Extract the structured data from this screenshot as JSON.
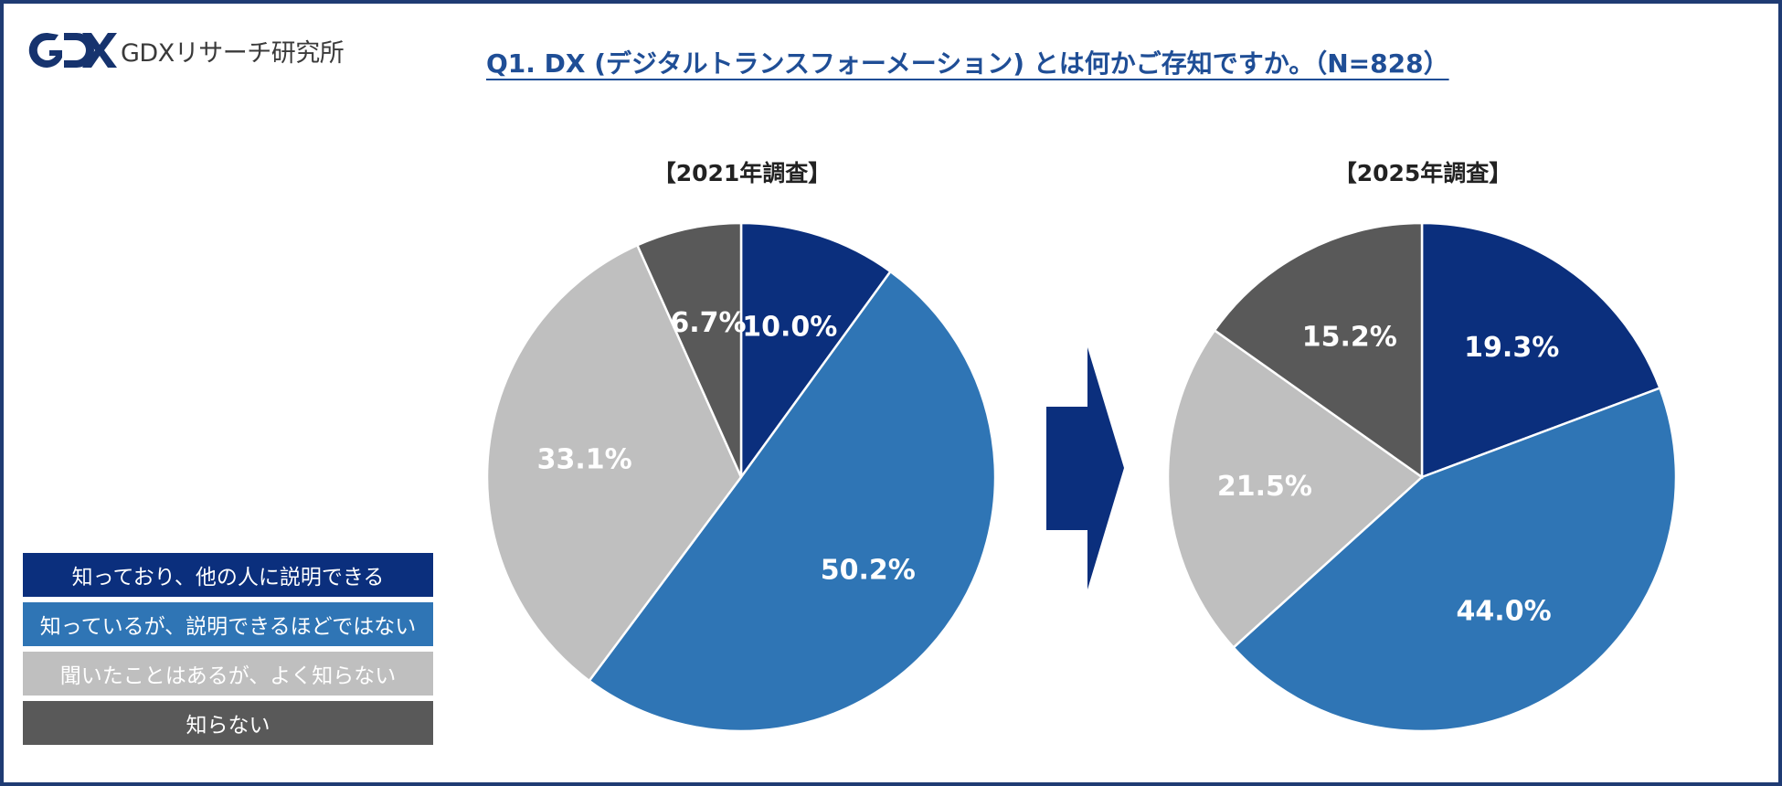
{
  "header": {
    "logo_text": "GDXリサーチ研究所",
    "title": "Q1. DX (デジタルトランスフォーメーション) とは何かご存知ですか。（N=828）"
  },
  "colors": {
    "dark_blue": "#0b2f7d",
    "mid_blue": "#2f75b5",
    "light_gray": "#bfbfbf",
    "dark_gray": "#595959",
    "arrow": "#0b2f7d",
    "title": "#1f4e96",
    "frame": "#1f3b73"
  },
  "legend": [
    {
      "label": "知っており、他の人に説明できる",
      "color": "#0b2f7d"
    },
    {
      "label": "知っているが、説明できるほどではない",
      "color": "#2f75b5"
    },
    {
      "label": "聞いたことはあるが、よく知らない",
      "color": "#bfbfbf"
    },
    {
      "label": "知らない",
      "color": "#595959"
    }
  ],
  "arrow_icon": "right-arrow-icon",
  "chart_data": [
    {
      "type": "pie",
      "title": "【2021年調査】",
      "categories": [
        "知っており、他の人に説明できる",
        "知っているが、説明できるほどではない",
        "聞いたことはあるが、よく知らない",
        "知らない"
      ],
      "values": [
        10.0,
        50.2,
        33.1,
        6.7
      ],
      "labels": [
        "10.0%",
        "50.2%",
        "33.1%",
        "6.7%"
      ],
      "colors": [
        "#0b2f7d",
        "#2f75b5",
        "#bfbfbf",
        "#595959"
      ]
    },
    {
      "type": "pie",
      "title": "【2025年調査】",
      "categories": [
        "知っており、他の人に説明できる",
        "知っているが、説明できるほどではない",
        "聞いたことはあるが、よく知らない",
        "知らない"
      ],
      "values": [
        19.3,
        44.0,
        21.5,
        15.2
      ],
      "labels": [
        "19.3%",
        "44.0%",
        "21.5%",
        "15.2%"
      ],
      "colors": [
        "#0b2f7d",
        "#2f75b5",
        "#bfbfbf",
        "#595959"
      ]
    }
  ]
}
